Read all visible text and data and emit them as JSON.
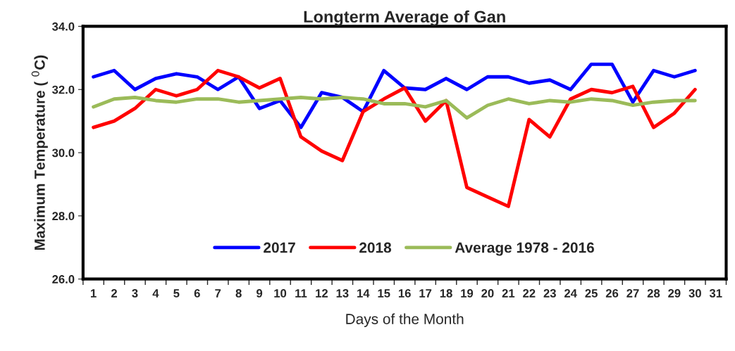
{
  "chart_data": {
    "type": "line",
    "title": "Longterm Average of Gan",
    "xlabel": "Days of the Month",
    "ylabel": "Maximum Temperature ( $^{0}$C)",
    "categories": [
      "1",
      "2",
      "3",
      "4",
      "5",
      "6",
      "7",
      "8",
      "9",
      "10",
      "11",
      "12",
      "13",
      "14",
      "15",
      "16",
      "17",
      "18",
      "19",
      "20",
      "21",
      "22",
      "23",
      "24",
      "25",
      "26",
      "27",
      "28",
      "29",
      "30",
      "31"
    ],
    "series": [
      {
        "name": "2017",
        "color": "#0000ff",
        "values": [
          32.4,
          32.6,
          32.0,
          32.35,
          32.5,
          32.4,
          32.0,
          32.4,
          31.4,
          31.65,
          30.8,
          31.9,
          31.75,
          31.3,
          32.6,
          32.05,
          32.0,
          32.35,
          32.0,
          32.4,
          32.4,
          32.2,
          32.3,
          32.0,
          32.8,
          32.8,
          31.6,
          32.6,
          32.4,
          32.6,
          null
        ]
      },
      {
        "name": "2018",
        "color": "#ff0000",
        "values": [
          30.8,
          31.0,
          31.4,
          32.0,
          31.8,
          32.0,
          32.6,
          32.4,
          32.05,
          32.35,
          30.5,
          30.05,
          29.75,
          31.3,
          31.7,
          32.05,
          31.0,
          31.65,
          28.9,
          28.6,
          28.3,
          31.05,
          30.5,
          31.7,
          32.0,
          31.9,
          32.1,
          30.8,
          31.25,
          32.0,
          null
        ]
      },
      {
        "name": "Average 1978 - 2016",
        "color": "#9bbb59",
        "values": [
          31.45,
          31.7,
          31.75,
          31.65,
          31.6,
          31.7,
          31.7,
          31.6,
          31.65,
          31.7,
          31.75,
          31.7,
          31.75,
          31.7,
          31.55,
          31.55,
          31.45,
          31.65,
          31.1,
          31.5,
          31.7,
          31.55,
          31.65,
          31.6,
          31.7,
          31.65,
          31.5,
          31.6,
          31.65,
          31.65,
          null
        ]
      }
    ],
    "ylim": [
      26,
      34
    ],
    "yticks": [
      {
        "value": 26,
        "label": "26.0"
      },
      {
        "value": 28,
        "label": "28.0"
      },
      {
        "value": 30,
        "label": "30.0"
      },
      {
        "value": 32,
        "label": "32.0"
      },
      {
        "value": 34,
        "label": "34.0"
      }
    ],
    "grid": false,
    "legend": "bottom",
    "marker": "none",
    "line_style": "solid"
  }
}
